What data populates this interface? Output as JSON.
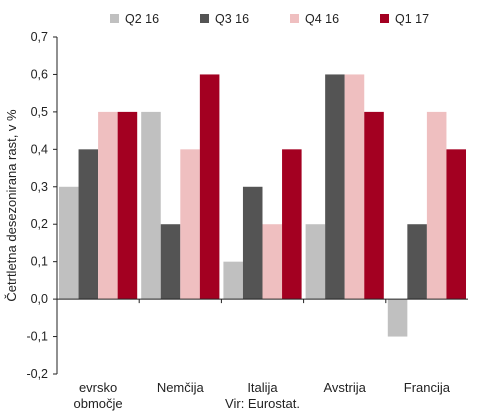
{
  "chart_data": {
    "type": "bar",
    "categories": [
      [
        "evrsko",
        "območje"
      ],
      [
        "Nemčija"
      ],
      [
        "Italija"
      ],
      [
        "Avstrija"
      ],
      [
        "Francija"
      ]
    ],
    "series": [
      {
        "name": "Q2 16",
        "color": "#c0c0c0",
        "values": [
          0.3,
          0.5,
          0.1,
          0.2,
          -0.1
        ]
      },
      {
        "name": "Q3 16",
        "color": "#545454",
        "values": [
          0.4,
          0.2,
          0.3,
          0.6,
          0.2
        ]
      },
      {
        "name": "Q4 16",
        "color": "#efbfc0",
        "values": [
          0.5,
          0.4,
          0.2,
          0.6,
          0.5
        ]
      },
      {
        "name": "Q1 17",
        "color": "#a30021",
        "values": [
          0.5,
          0.6,
          0.4,
          0.5,
          0.4
        ]
      }
    ],
    "ylabel": "Četrtletna desezonirana rast, v %",
    "ylim": [
      -0.2,
      0.7
    ],
    "ytick_values": [
      0.7,
      0.6,
      0.5,
      0.4,
      0.3,
      0.2,
      0.1,
      0.0,
      -0.1,
      -0.2
    ],
    "ytick_labels": [
      "0,7",
      "0,6",
      "0,5",
      "0,4",
      "0,3",
      "0,2",
      "0,1",
      "0,0",
      "-0,1",
      "-0,2"
    ],
    "grid": false,
    "legend_position": "top",
    "source_note": "Vir: Eurostat."
  }
}
